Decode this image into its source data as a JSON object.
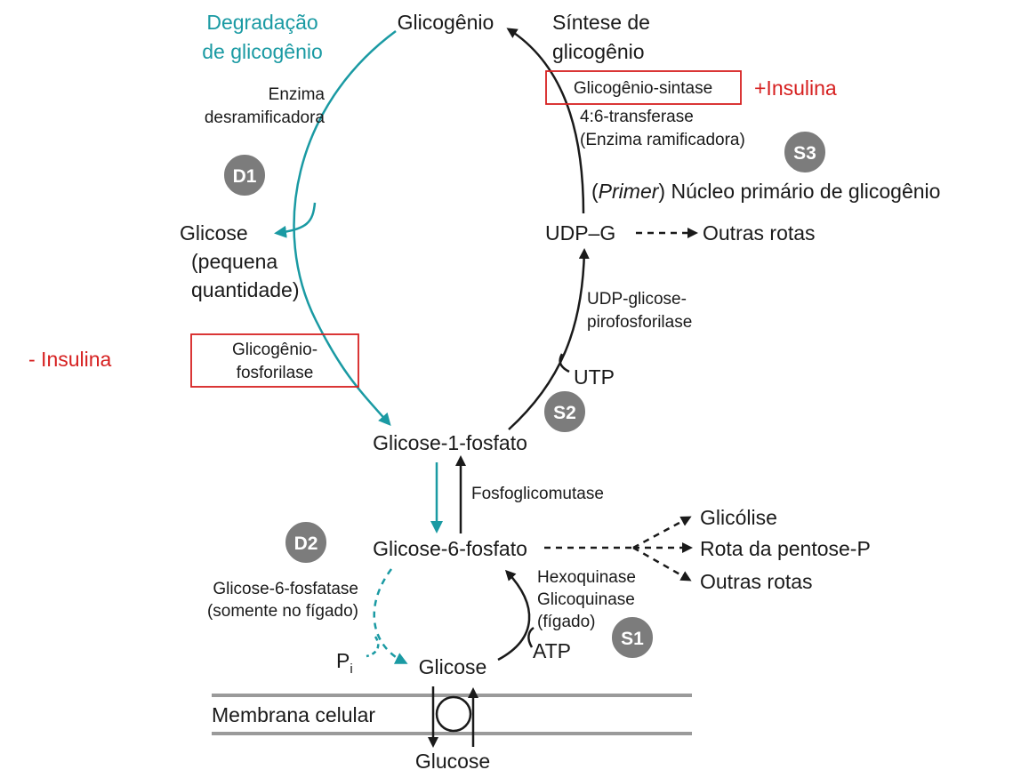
{
  "nodes": {
    "glicogenio": "Glicogênio",
    "glicose_pequena": [
      "Glicose",
      "(pequena",
      "quantidade)"
    ],
    "udp_g": "UDP–G",
    "outras_rotas_top": "Outras rotas",
    "g1p": "Glicose-1-fosfato",
    "g6p": "Glicose-6-fosfato",
    "glicose": "Glicose",
    "glucose": "Glucose",
    "glicolise": "Glicólise",
    "rota_pentose": "Rota da pentose-P",
    "outras_rotas_bottom": "Outras rotas",
    "pi": "P",
    "pi_sub": "i",
    "utp": "UTP",
    "atp": "ATP"
  },
  "labels": {
    "degradacao": [
      "Degradação",
      "de glicogênio"
    ],
    "sintese": [
      "Síntese de",
      "glicogênio"
    ],
    "enzima_desramificadora": [
      "Enzima",
      "desramificadora"
    ],
    "glicogenio_sintase": "Glicogênio-sintase",
    "insulina_plus": "+Insulina",
    "insulina_minus": "- Insulina",
    "transferase": [
      "4:6-transferase",
      "(Enzima ramificadora)"
    ],
    "primer_italic": "Primer",
    "primer_rest": ") Núcleo primário de glicogênio",
    "primer_open": "(",
    "udp_pirofosforilase": [
      "UDP-glicose-",
      "pirofosforilase"
    ],
    "glicogenio_fosforilase": [
      "Glicogênio-",
      "fosforilase"
    ],
    "fosfoglicomutase": "Fosfoglicomutase",
    "hexoquinase": [
      "Hexoquinase",
      "Glicoquinase",
      "(fígado)"
    ],
    "g6fosfatase": [
      "Glicose-6-fosfatase",
      "(somente no fígado)"
    ],
    "membrana": "Membrana celular"
  },
  "badges": {
    "d1": "D1",
    "d2": "D2",
    "s1": "S1",
    "s2": "S2",
    "s3": "S3"
  },
  "colors": {
    "degradation": "#1a9aa3",
    "synthesis": "#1a1a1a",
    "insulin": "#d62020",
    "membrane": "#9a9a9a",
    "badge": "#7c7c7c"
  }
}
